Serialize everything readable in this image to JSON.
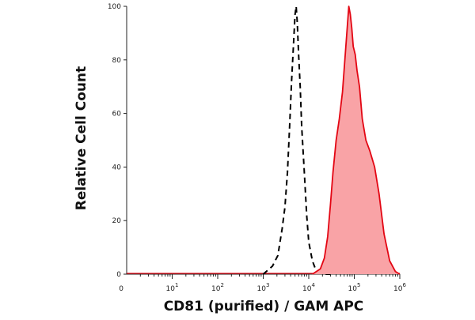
{
  "chart_data": {
    "type": "area",
    "xlabel": "CD81 (purified) / GAM APC",
    "ylabel": "Relative Cell Count",
    "x_scale": "log",
    "xlim": [
      1,
      1000000
    ],
    "ylim": [
      0,
      100
    ],
    "x_ticks": [
      {
        "base": "10",
        "exp": "1",
        "value": 10
      },
      {
        "base": "10",
        "exp": "2",
        "value": 100
      },
      {
        "base": "10",
        "exp": "3",
        "value": 1000
      },
      {
        "base": "10",
        "exp": "4",
        "value": 10000
      },
      {
        "base": "10",
        "exp": "5",
        "value": 100000
      },
      {
        "base": "10",
        "exp": "6",
        "value": 1000000
      }
    ],
    "x_minor_tick_label": "0",
    "y_ticks": [
      "0",
      "20",
      "40",
      "60",
      "80",
      "100"
    ],
    "grid": false,
    "legend": "none",
    "colors": {
      "control": "#000000",
      "stained_line": "#e30613",
      "stained_fill": "#f9a3a6"
    },
    "series": [
      {
        "style": "dashed-black-outline",
        "x": [
          1000,
          1600,
          2100,
          2600,
          3000,
          3400,
          3800,
          4200,
          4600,
          5000,
          5300,
          5600,
          6000,
          6500,
          7000,
          8000,
          9000,
          10000,
          12000,
          14000,
          16000,
          20000,
          30000
        ],
        "y": [
          0,
          3,
          7,
          17,
          25,
          38,
          55,
          72,
          85,
          97,
          100,
          94,
          82,
          70,
          55,
          38,
          22,
          12,
          5,
          2,
          1,
          0,
          0
        ]
      },
      {
        "style": "filled-red",
        "x": [
          12000,
          18000,
          22000,
          26000,
          30000,
          34000,
          40000,
          47000,
          55000,
          62000,
          70000,
          76000,
          82000,
          88000,
          95000,
          105000,
          115000,
          130000,
          150000,
          180000,
          220000,
          280000,
          350000,
          450000,
          600000,
          800000,
          1000000
        ],
        "y": [
          0,
          2,
          6,
          14,
          26,
          38,
          50,
          58,
          68,
          80,
          92,
          100,
          97,
          92,
          85,
          82,
          76,
          70,
          58,
          50,
          46,
          40,
          30,
          15,
          5,
          1,
          0
        ]
      }
    ]
  }
}
